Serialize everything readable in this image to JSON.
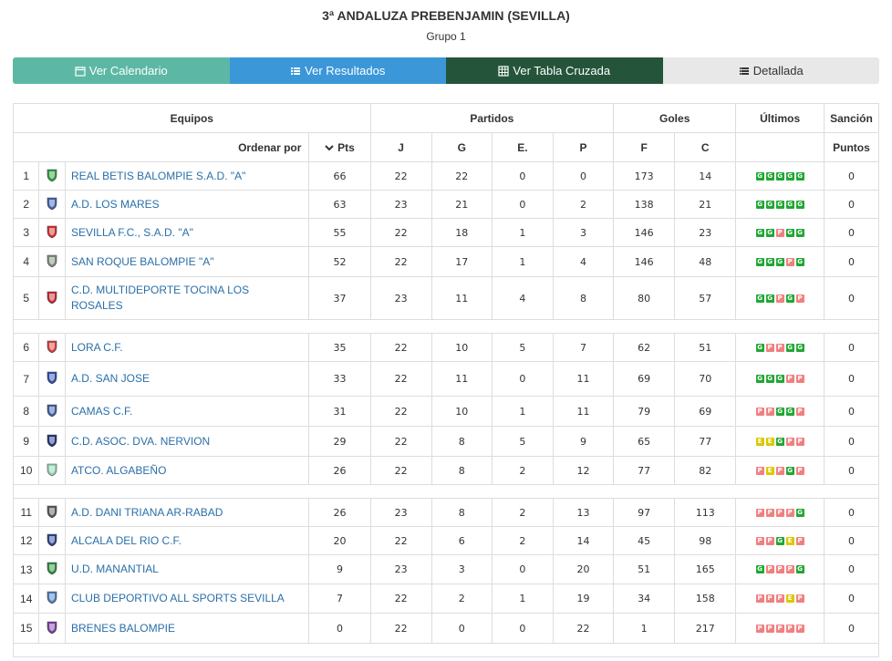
{
  "header": {
    "title": "3ª ANDALUZA PREBENJAMIN (SEVILLA)",
    "subtitle": "Grupo 1"
  },
  "nav": [
    {
      "label": "Ver Calendario",
      "icon": "calendar-icon"
    },
    {
      "label": "Ver Resultados",
      "icon": "list-icon"
    },
    {
      "label": "Ver Tabla Cruzada",
      "icon": "table-icon"
    },
    {
      "label": "Detallada",
      "icon": "detailed-list-icon"
    }
  ],
  "table": {
    "groups": {
      "equipos": "Equipos",
      "partidos": "Partidos",
      "goles": "Goles",
      "ultimos": "Últimos",
      "sancion": "Sanción"
    },
    "cols": {
      "ordenar": "Ordenar por",
      "pts": "Pts",
      "j": "J",
      "g": "G",
      "e": "E.",
      "p": "P",
      "f": "F",
      "c": "C",
      "puntos": "Puntos"
    },
    "rows": [
      {
        "pos": "1",
        "team": "REAL BETIS BALOMPIE S.A.D. \"A\"",
        "pts": "66",
        "j": "22",
        "g": "22",
        "e": "0",
        "p": "0",
        "f": "173",
        "c": "14",
        "last": "GGGGG",
        "sancion": "0",
        "crest": "#2a9a3a"
      },
      {
        "pos": "2",
        "team": "A.D. LOS MARES",
        "pts": "63",
        "j": "23",
        "g": "21",
        "e": "0",
        "p": "2",
        "f": "138",
        "c": "21",
        "last": "GGGGG",
        "sancion": "0",
        "crest": "#3b5fa8"
      },
      {
        "pos": "3",
        "team": "SEVILLA F.C., S.A.D. \"A\"",
        "pts": "55",
        "j": "22",
        "g": "18",
        "e": "1",
        "p": "3",
        "f": "146",
        "c": "23",
        "last": "GGPGG",
        "sancion": "0",
        "crest": "#d12b2b"
      },
      {
        "pos": "4",
        "team": "SAN ROQUE BALOMPIE \"A\"",
        "pts": "52",
        "j": "22",
        "g": "17",
        "e": "1",
        "p": "4",
        "f": "146",
        "c": "48",
        "last": "GGGPG",
        "sancion": "0",
        "crest": "#7a8a7a"
      },
      {
        "pos": "5",
        "team": "C.D. MULTIDEPORTE TOCINA LOS ROSALES",
        "pts": "37",
        "j": "23",
        "g": "11",
        "e": "4",
        "p": "8",
        "f": "80",
        "c": "57",
        "last": "GGPGP",
        "sancion": "0",
        "crest": "#c0272d"
      },
      {
        "pos": "6",
        "team": "LORA C.F.",
        "pts": "35",
        "j": "22",
        "g": "10",
        "e": "5",
        "p": "7",
        "f": "62",
        "c": "51",
        "last": "GPPGG",
        "sancion": "0",
        "crest": "#d43a3a"
      },
      {
        "pos": "7",
        "team": "A.D. SAN JOSE",
        "pts": "33",
        "j": "22",
        "g": "11",
        "e": "0",
        "p": "11",
        "f": "69",
        "c": "70",
        "last": "GGGPP",
        "sancion": "0",
        "crest": "#2a4aa8"
      },
      {
        "pos": "8",
        "team": "CAMAS C.F.",
        "pts": "31",
        "j": "22",
        "g": "10",
        "e": "1",
        "p": "11",
        "f": "79",
        "c": "69",
        "last": "PPGGP",
        "sancion": "0",
        "crest": "#3a5aa0"
      },
      {
        "pos": "9",
        "team": "C.D. ASOC. DVA. NERVION",
        "pts": "29",
        "j": "22",
        "g": "8",
        "e": "5",
        "p": "9",
        "f": "65",
        "c": "77",
        "last": "EEGPP",
        "sancion": "0",
        "crest": "#1d2f7a"
      },
      {
        "pos": "10",
        "team": "ATCO. ALGABEÑO",
        "pts": "26",
        "j": "22",
        "g": "8",
        "e": "2",
        "p": "12",
        "f": "77",
        "c": "82",
        "last": "PEPGP",
        "sancion": "0",
        "crest": "#8fcfb0"
      },
      {
        "pos": "11",
        "team": "A.D. DANI TRIANA AR-RABAD",
        "pts": "26",
        "j": "23",
        "g": "8",
        "e": "2",
        "p": "13",
        "f": "97",
        "c": "113",
        "last": "PPPPG",
        "sancion": "0",
        "crest": "#555555"
      },
      {
        "pos": "12",
        "team": "ALCALA DEL RIO C.F.",
        "pts": "20",
        "j": "22",
        "g": "6",
        "e": "2",
        "p": "14",
        "f": "45",
        "c": "98",
        "last": "PPGEP",
        "sancion": "0",
        "crest": "#2a3f8a"
      },
      {
        "pos": "13",
        "team": "U.D. MANANTIAL",
        "pts": "9",
        "j": "23",
        "g": "3",
        "e": "0",
        "p": "20",
        "f": "51",
        "c": "165",
        "last": "GPPPG",
        "sancion": "0",
        "crest": "#2a8a3a"
      },
      {
        "pos": "14",
        "team": "CLUB DEPORTIVO ALL SPORTS SEVILLA",
        "pts": "7",
        "j": "22",
        "g": "2",
        "e": "1",
        "p": "19",
        "f": "34",
        "c": "158",
        "last": "PPPEP",
        "sancion": "0",
        "crest": "#4a78b8"
      },
      {
        "pos": "15",
        "team": "BRENES BALOMPIE",
        "pts": "0",
        "j": "22",
        "g": "0",
        "e": "0",
        "p": "22",
        "f": "1",
        "c": "217",
        "last": "PPPPP",
        "sancion": "0",
        "crest": "#7a3a9a"
      }
    ]
  }
}
